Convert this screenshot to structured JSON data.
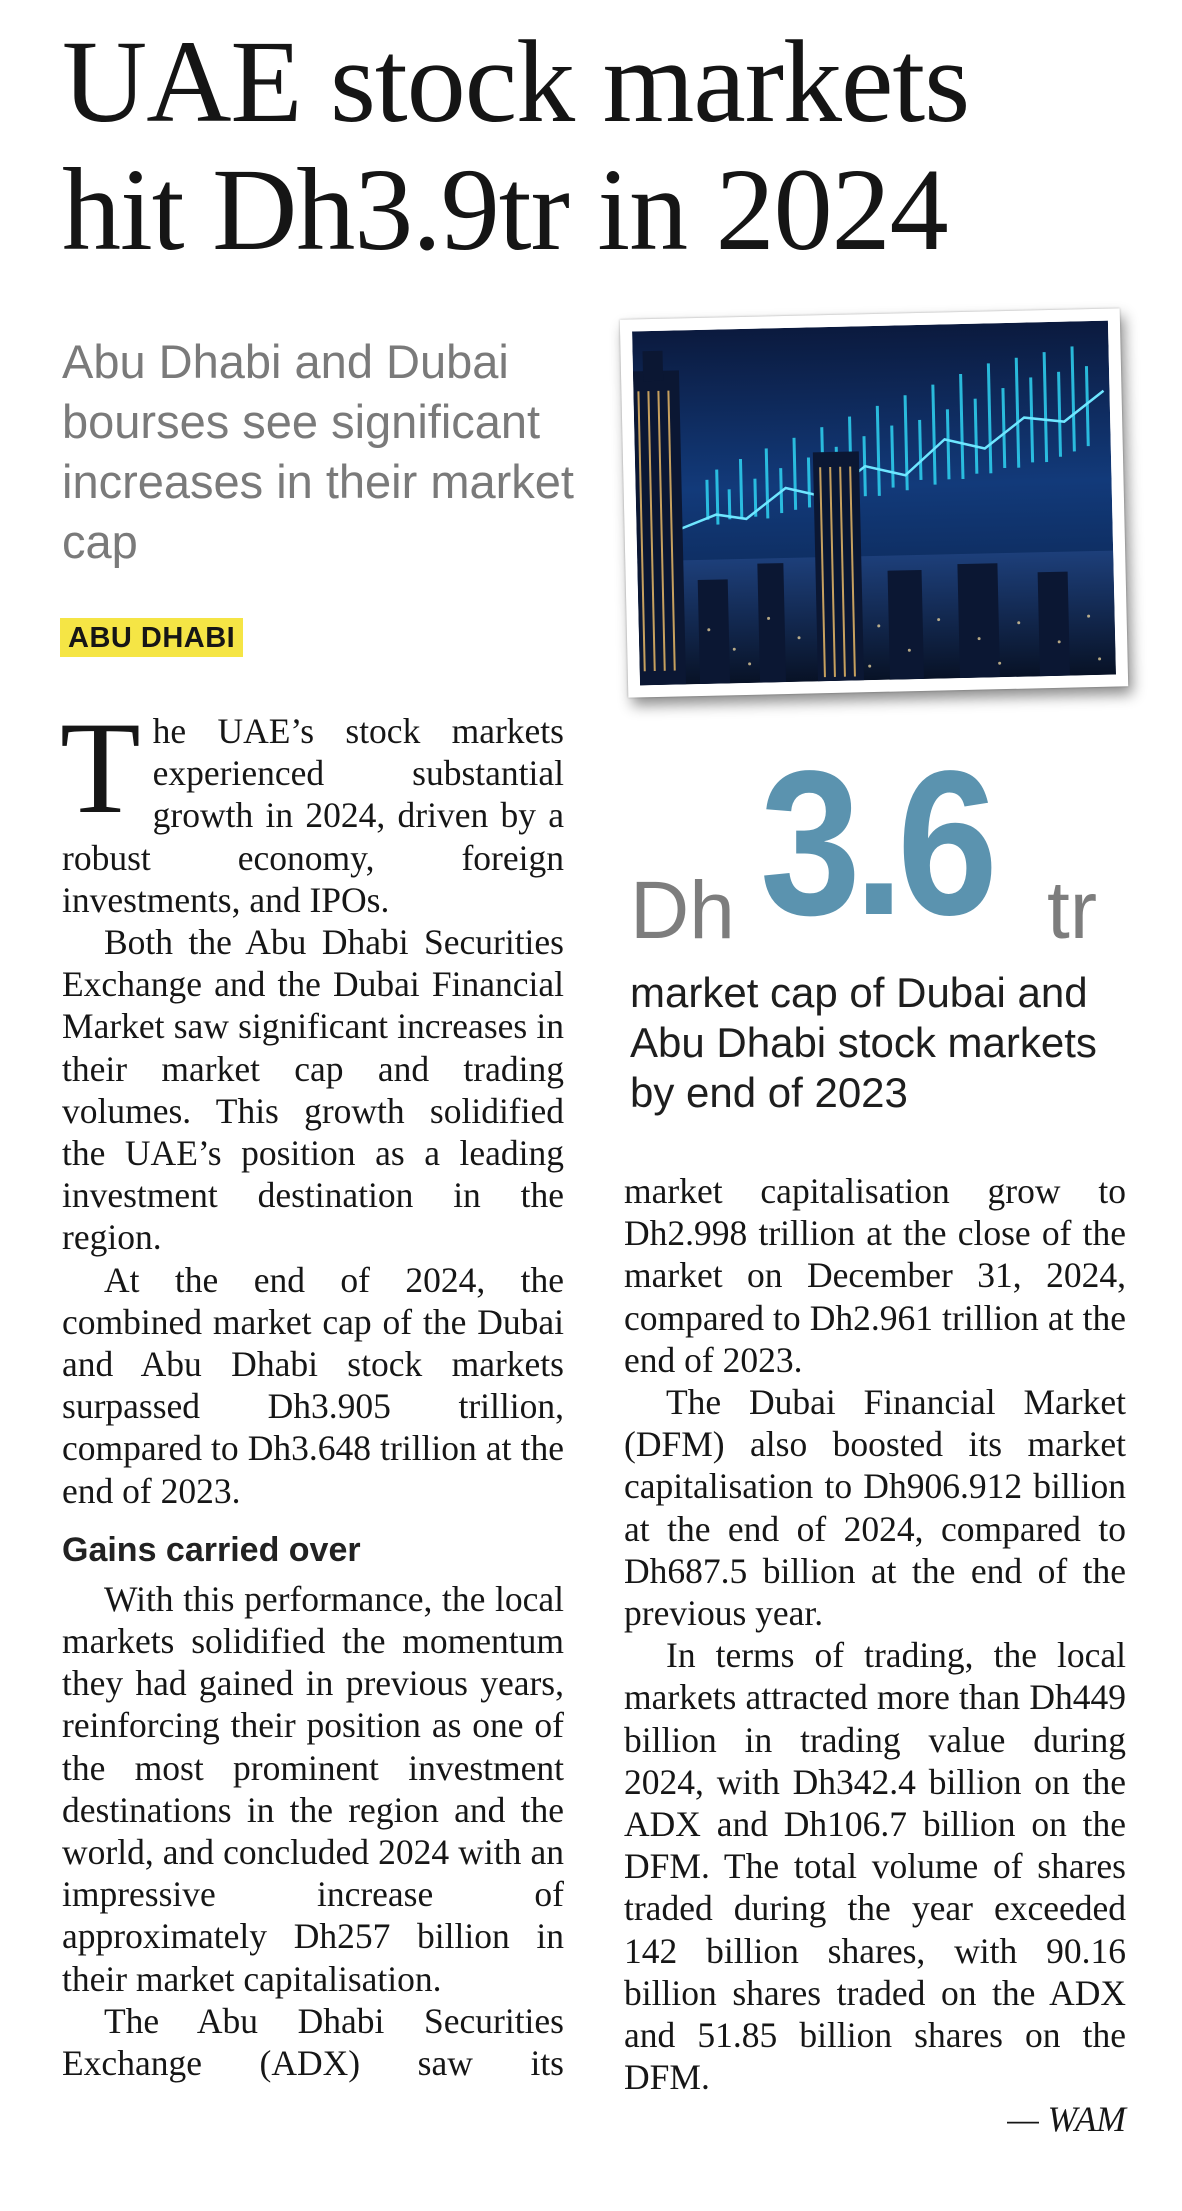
{
  "headline": {
    "line1": "UAE stock markets",
    "line2": "hit Dh3.9tr in 2024"
  },
  "deck": "Abu Dhabi and Dubai bourses see significant increases in their market cap",
  "dateline": "ABU DHABI",
  "stat": {
    "prefix": "Dh",
    "number": "3.6",
    "suffix": "tr",
    "caption": "market cap of Dubai and Abu Dhabi stock markets by end of 2023"
  },
  "body": {
    "dropcap": "T",
    "p1": "he UAE’s stock markets experienced substantial growth in 2024, driven by a robust economy, foreign investments, and IPOs.",
    "p2": "Both the Abu Dhabi Securities Exchange and the Dubai Financial Market saw significant increases in their market cap and trading volumes. This growth solidified the UAE’s position as a leading investment destination in the region.",
    "p3": "At the end of 2024, the combined market cap of the Dubai and Abu Dhabi stock markets surpassed Dh3.905 trillion, compared to Dh3.648 trillion at the end of 2023.",
    "subhead": "Gains carried over",
    "p4": "With this performance, the local markets solidified the momentum they had gained in previous years, reinforcing their position as one of the most prominent investment destinations in the region and the world, and concluded 2024 with an impressive increase of approximately Dh257 billion in their market capitalisation.",
    "p5": "The Abu Dhabi Securities Exchange (ADX) saw its",
    "p5_cont": "market capitalisation grow to Dh2.998 trillion at the close of the market on December 31, 2024, compared to Dh2.961 trillion at the end of 2023.",
    "p6": "The Dubai Financial Market (DFM) also boosted its market capitalisation to Dh906.912 billion at the end of 2024, compared to Dh687.5 billion at the end of the previous year.",
    "p7": "In terms of trading, the local markets attracted more than Dh449 billion in trading value during 2024, with Dh342.4 billion on the ADX and Dh106.7 billion on the DFM. The total volume of shares traded during the year exceeded 142 billion shares, with 90.16 billion shares traded on the ADX and 51.85 billion shares on the DFM.",
    "credit": "— WAM"
  }
}
